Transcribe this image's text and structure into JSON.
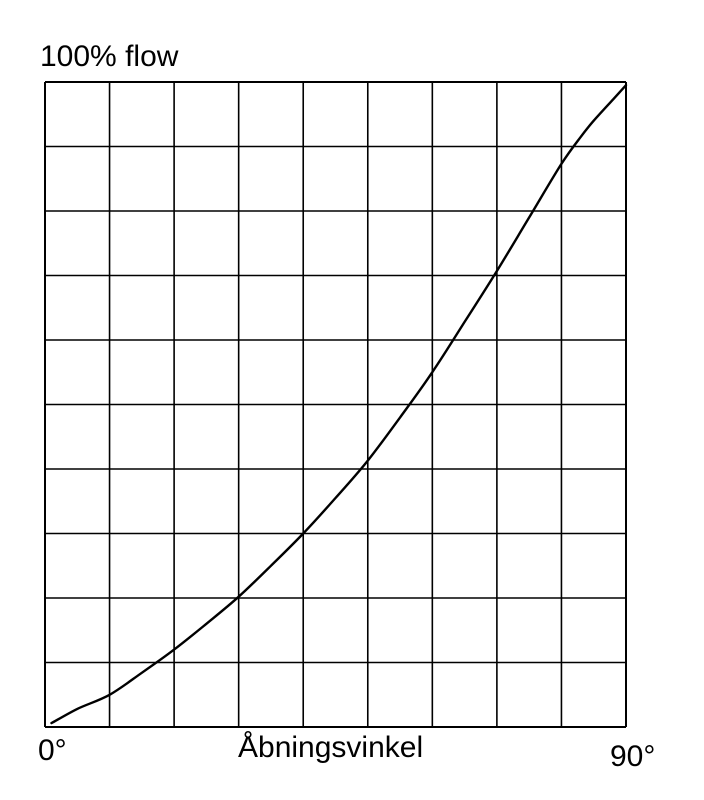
{
  "chart_data": {
    "type": "line",
    "title": "",
    "ylabel": "100% flow",
    "xlabel": "Åbningsvinkel",
    "x_tick_labels": [
      "0°",
      "90°"
    ],
    "xlim": [
      0,
      90
    ],
    "ylim": [
      0,
      100
    ],
    "grid": true,
    "grid_divisions": {
      "x": 9,
      "y": 10
    },
    "colors": {
      "line": "#000000",
      "grid": "#000000",
      "background": "#ffffff"
    },
    "series": [
      {
        "x": [
          1,
          5,
          10,
          15,
          20,
          25,
          30,
          35,
          40,
          45,
          50,
          55,
          60,
          65,
          70,
          75,
          80,
          83,
          85,
          88,
          90
        ],
        "y": [
          0.6,
          2.8,
          5,
          8.4,
          12,
          16,
          20.2,
          25,
          30,
          35.5,
          41.3,
          48,
          55,
          62.8,
          70.7,
          79,
          87.3,
          91.5,
          94,
          97.3,
          99.5
        ]
      }
    ]
  }
}
